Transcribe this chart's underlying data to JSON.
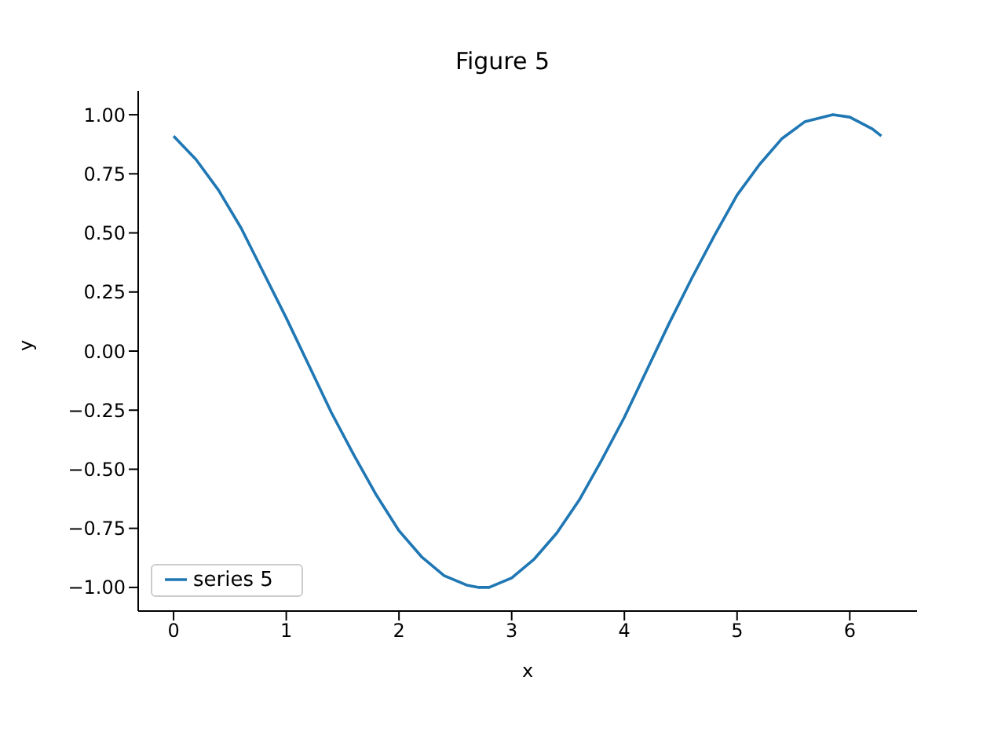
{
  "chart_data": {
    "type": "line",
    "title": "Figure 5",
    "xlabel": "x",
    "ylabel": "y",
    "x": [
      0,
      0.2,
      0.4,
      0.6,
      0.8,
      1.0,
      1.2,
      1.4,
      1.6,
      1.8,
      2.0,
      2.2,
      2.4,
      2.6,
      2.71,
      2.8,
      3.0,
      3.2,
      3.4,
      3.6,
      3.8,
      4.0,
      4.2,
      4.4,
      4.6,
      4.8,
      5.0,
      5.2,
      5.4,
      5.6,
      5.85,
      6.0,
      6.2,
      6.28
    ],
    "series": [
      {
        "name": "series 5",
        "color": "#1f77b4",
        "values": [
          0.91,
          0.81,
          0.68,
          0.52,
          0.33,
          0.14,
          -0.06,
          -0.26,
          -0.44,
          -0.61,
          -0.76,
          -0.87,
          -0.95,
          -0.99,
          -1.0,
          -1.0,
          -0.96,
          -0.88,
          -0.77,
          -0.63,
          -0.46,
          -0.28,
          -0.08,
          0.12,
          0.31,
          0.49,
          0.66,
          0.79,
          0.9,
          0.97,
          1.0,
          0.99,
          0.94,
          0.91
        ]
      }
    ],
    "xlim": [
      -0.314,
      6.597
    ],
    "ylim": [
      -1.1,
      1.1
    ],
    "xticks": [
      0,
      1,
      2,
      3,
      4,
      5,
      6
    ],
    "yticks": [
      {
        "value": -1,
        "label": "−1.00"
      },
      {
        "value": -0.75,
        "label": "−0.75"
      },
      {
        "value": -0.5,
        "label": "−0.50"
      },
      {
        "value": -0.25,
        "label": "−0.25"
      },
      {
        "value": 0,
        "label": "0.00"
      },
      {
        "value": 0.25,
        "label": "0.25"
      },
      {
        "value": 0.5,
        "label": "0.50"
      },
      {
        "value": 0.75,
        "label": "0.75"
      },
      {
        "value": 1,
        "label": "1.00"
      }
    ],
    "grid": false,
    "legend": "bottom left",
    "marker": "none",
    "line_style": "solid"
  }
}
